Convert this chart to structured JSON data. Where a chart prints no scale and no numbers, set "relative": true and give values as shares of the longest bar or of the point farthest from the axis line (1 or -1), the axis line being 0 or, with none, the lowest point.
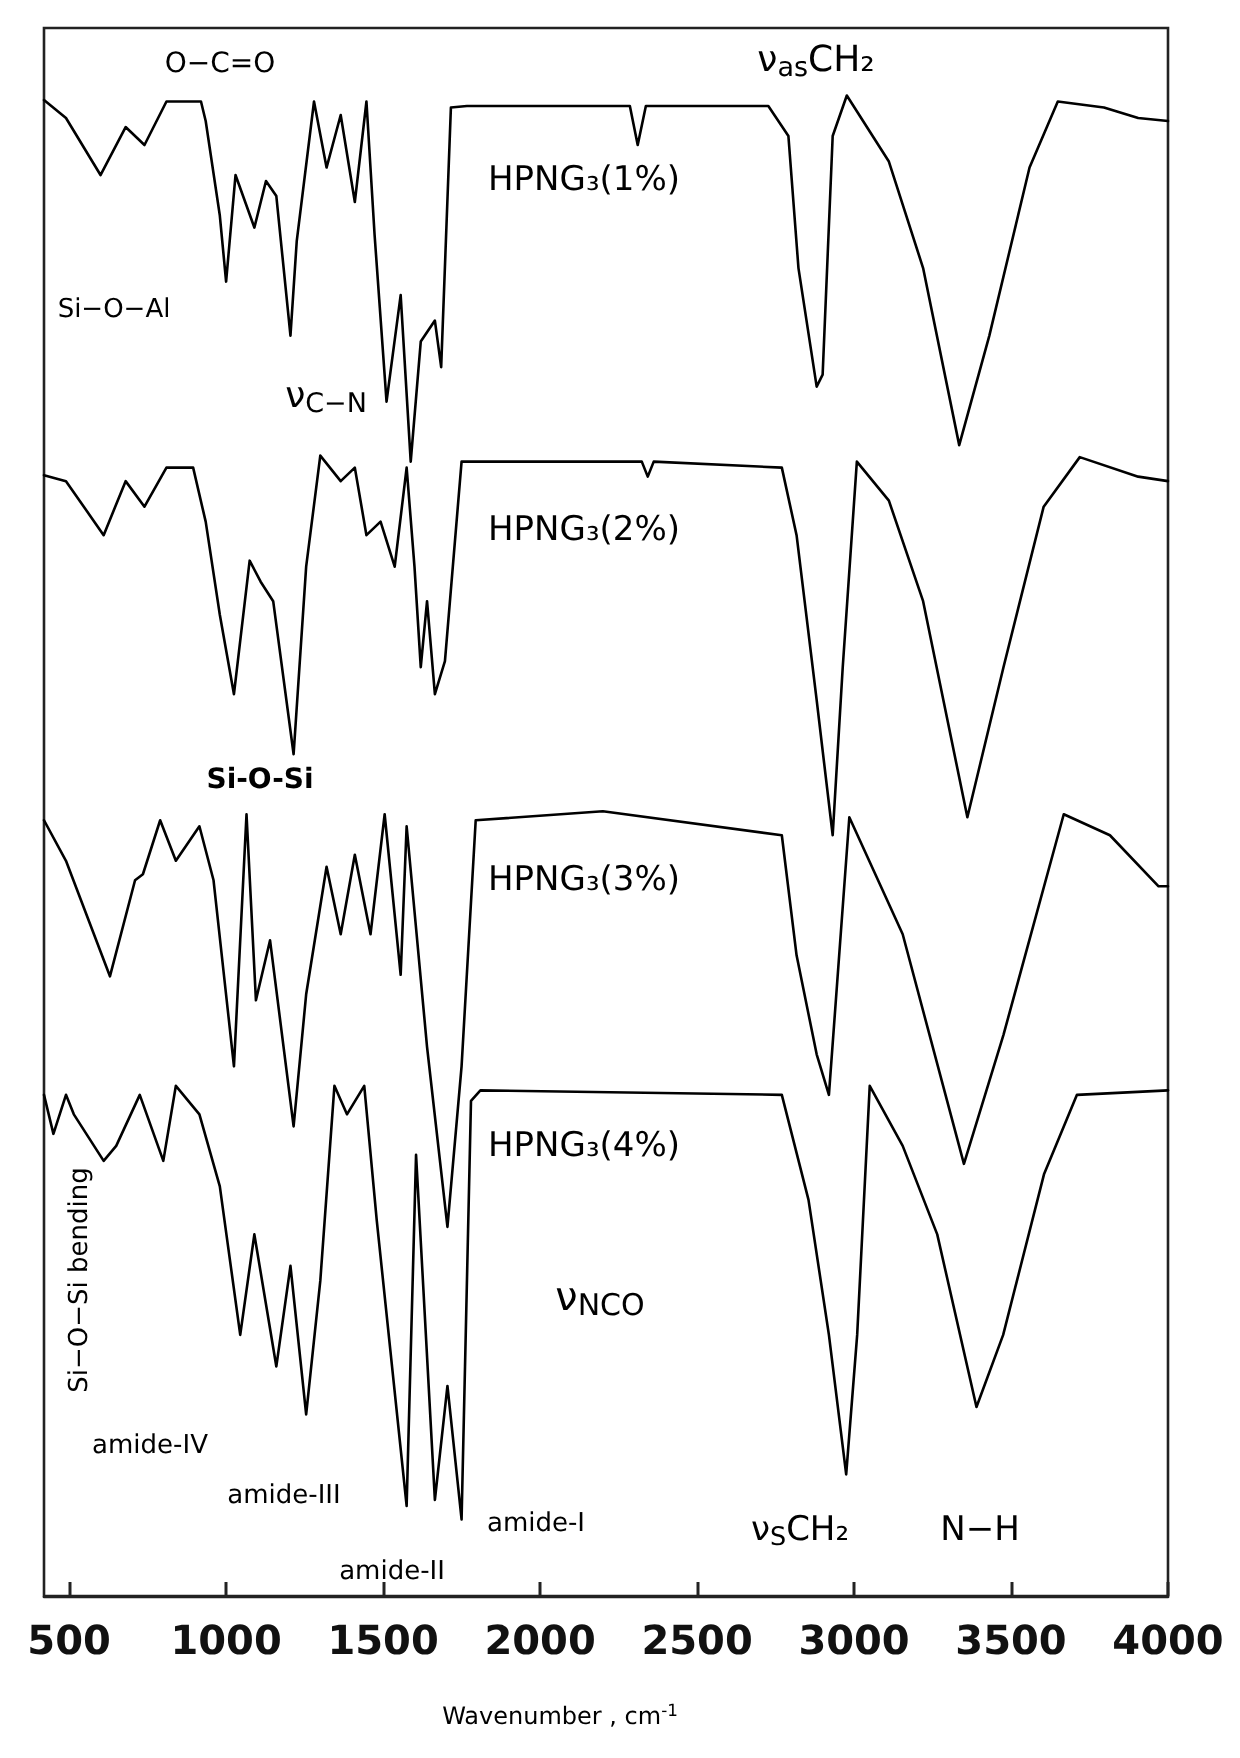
{
  "chart_data": {
    "type": "line",
    "relative": true,
    "xlabel": "Wavenumber , cm$^{-1}$",
    "xlim": [
      420,
      4000
    ],
    "xticks": [
      500,
      1000,
      1500,
      2000,
      2500,
      3000,
      3500,
      4000
    ],
    "grid": false,
    "legend": false,
    "marker": "none",
    "line_style": "solid",
    "annotations": [
      "O−C=O",
      "ν$_{as}$CH₂",
      "Si−O−Al",
      "ν$_{C−N}$",
      "Si-O-Si",
      "Si−O−Si bending",
      "amide-IV",
      "amide-III",
      "amide-II",
      "amide-I",
      "ν$_{NCO}$",
      "ν$_{S}$CH₂",
      "N−H"
    ],
    "series": [
      {
        "name": "HPNG₃(1%)",
        "color": "#000000",
        "x": [
          420,
          490,
          600,
          680,
          740,
          810,
          920,
          935,
          980,
          1000,
          1030,
          1090,
          1127,
          1160,
          1205,
          1225,
          1280,
          1320,
          1365,
          1410,
          1447,
          1473,
          1511,
          1556,
          1588,
          1620,
          1665,
          1685,
          1716,
          1767,
          2286,
          2311,
          2337,
          2727,
          2791,
          2823,
          2881,
          2900,
          2932,
          2977,
          3111,
          3220,
          3335,
          3431,
          3559,
          3649,
          3796,
          3905,
          4000
        ],
        "values": [
          0.997,
          0.985,
          0.947,
          0.979,
          0.967,
          0.996,
          0.996,
          0.983,
          0.92,
          0.876,
          0.947,
          0.912,
          0.943,
          0.933,
          0.84,
          0.903,
          0.996,
          0.952,
          0.987,
          0.929,
          0.996,
          0.907,
          0.796,
          0.867,
          0.756,
          0.836,
          0.85,
          0.819,
          0.992,
          0.993,
          0.993,
          0.967,
          0.993,
          0.993,
          0.973,
          0.885,
          0.806,
          0.814,
          0.973,
          1,
          0.956,
          0.885,
          0.767,
          0.84,
          0.952,
          0.996,
          0.992,
          0.985,
          0.983
        ]
      },
      {
        "name": "HPNG₃(2%)",
        "color": "#000000",
        "x": [
          420,
          490,
          610,
          680,
          740,
          810,
          895,
          935,
          980,
          1025,
          1075,
          1110,
          1150,
          1215,
          1255,
          1300,
          1365,
          1410,
          1447,
          1492,
          1537,
          1575,
          1600,
          1620,
          1640,
          1665,
          1697,
          1750,
          2200,
          2324,
          2343,
          2362,
          2770,
          2817,
          2881,
          2932,
          2964,
          3009,
          3111,
          3220,
          3361,
          3476,
          3604,
          3719,
          3905,
          4000
        ],
        "values": [
          0.747,
          0.743,
          0.707,
          0.743,
          0.726,
          0.752,
          0.752,
          0.716,
          0.654,
          0.601,
          0.69,
          0.676,
          0.663,
          0.561,
          0.686,
          0.76,
          0.743,
          0.752,
          0.707,
          0.716,
          0.686,
          0.752,
          0.686,
          0.619,
          0.663,
          0.601,
          0.623,
          0.756,
          0.756,
          0.756,
          0.746,
          0.756,
          0.752,
          0.707,
          0.597,
          0.507,
          0.619,
          0.756,
          0.73,
          0.663,
          0.519,
          0.619,
          0.726,
          0.759,
          0.746,
          0.743
        ]
      },
      {
        "name": "HPNG₃(3%)",
        "color": "#000000",
        "x": [
          420,
          490,
          630,
          710,
          735,
          790,
          840,
          915,
          960,
          1025,
          1065,
          1095,
          1140,
          1215,
          1255,
          1320,
          1365,
          1410,
          1460,
          1505,
          1556,
          1575,
          1640,
          1705,
          1750,
          1795,
          2200,
          2770,
          2817,
          2881,
          2920,
          2985,
          3155,
          3350,
          3476,
          3668,
          3815,
          3970,
          4000
        ],
        "values": [
          0.517,
          0.49,
          0.413,
          0.477,
          0.481,
          0.517,
          0.49,
          0.513,
          0.477,
          0.353,
          0.521,
          0.397,
          0.437,
          0.313,
          0.401,
          0.486,
          0.441,
          0.494,
          0.441,
          0.521,
          0.414,
          0.513,
          0.366,
          0.246,
          0.353,
          0.517,
          0.523,
          0.507,
          0.427,
          0.361,
          0.334,
          0.519,
          0.441,
          0.288,
          0.374,
          0.521,
          0.507,
          0.473,
          0.473
        ]
      },
      {
        "name": "HPNG₃(4%)",
        "color": "#000000",
        "x": [
          420,
          450,
          490,
          515,
          610,
          650,
          725,
          800,
          840,
          915,
          980,
          1045,
          1090,
          1160,
          1205,
          1255,
          1300,
          1345,
          1385,
          1440,
          1480,
          1575,
          1605,
          1665,
          1705,
          1750,
          1780,
          1810,
          2770,
          2855,
          2920,
          2975,
          3010,
          3050,
          3155,
          3265,
          3390,
          3475,
          3605,
          3710,
          4000
        ],
        "values": [
          0.334,
          0.308,
          0.334,
          0.321,
          0.29,
          0.3,
          0.334,
          0.29,
          0.34,
          0.321,
          0.273,
          0.174,
          0.241,
          0.153,
          0.22,
          0.121,
          0.21,
          0.34,
          0.321,
          0.34,
          0.25,
          0.06,
          0.294,
          0.064,
          0.14,
          0.051,
          0.33,
          0.337,
          0.334,
          0.264,
          0.174,
          0.081,
          0.174,
          0.34,
          0.3,
          0.241,
          0.126,
          0.174,
          0.281,
          0.334,
          0.337
        ]
      }
    ]
  }
}
